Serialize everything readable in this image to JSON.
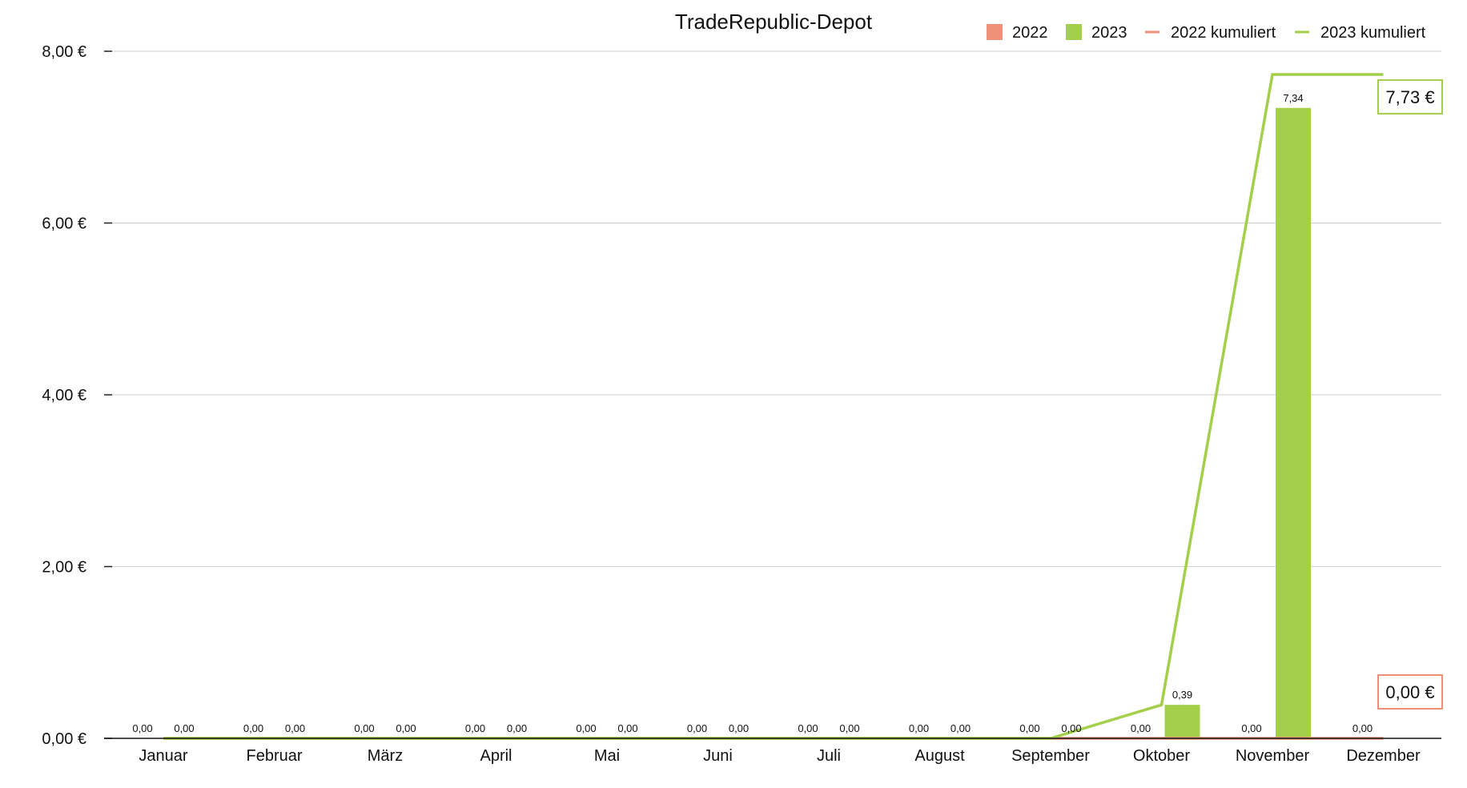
{
  "chart_data": {
    "type": "bar",
    "title": "TradeRepublic-Depot",
    "xlabel": "",
    "ylabel": "",
    "categories": [
      "Januar",
      "Februar",
      "März",
      "April",
      "Mai",
      "Juni",
      "Juli",
      "August",
      "September",
      "Oktober",
      "November",
      "Dezember"
    ],
    "series": [
      {
        "name": "2022",
        "kind": "bar",
        "color": "#EE907A",
        "values": [
          0,
          0,
          0,
          0,
          0,
          0,
          0,
          0,
          0,
          0,
          0,
          0
        ],
        "labels": [
          "0,00",
          "0,00",
          "0,00",
          "0,00",
          "0,00",
          "0,00",
          "0,00",
          "0,00",
          "0,00",
          "0,00",
          "0,00",
          "0,00"
        ]
      },
      {
        "name": "2023",
        "kind": "bar",
        "color": "#A4CF4A",
        "values": [
          0,
          0,
          0,
          0,
          0,
          0,
          0,
          0,
          0,
          0.39,
          7.34,
          null
        ],
        "labels": [
          "0,00",
          "0,00",
          "0,00",
          "0,00",
          "0,00",
          "0,00",
          "0,00",
          "0,00",
          "0,00",
          "0,39",
          "7,34",
          null
        ]
      },
      {
        "name": "2022 kumuliert",
        "kind": "line",
        "color": "#EE907A",
        "values": [
          0,
          0,
          0,
          0,
          0,
          0,
          0,
          0,
          0,
          0,
          0,
          0
        ],
        "final_label": "0,00 €"
      },
      {
        "name": "2023 kumuliert",
        "kind": "line",
        "color": "#A4CF4A",
        "values": [
          0,
          0,
          0,
          0,
          0,
          0,
          0,
          0,
          0,
          0.39,
          7.73,
          7.73
        ],
        "final_label": "7,73 €"
      }
    ],
    "ylim": [
      0,
      8
    ],
    "yticks": [
      0,
      2,
      4,
      6,
      8
    ],
    "ytick_labels": [
      "0,00 €",
      "2,00 €",
      "4,00 €",
      "6,00 €",
      "8,00 €"
    ],
    "grid": true,
    "legend_position": "top-right"
  }
}
